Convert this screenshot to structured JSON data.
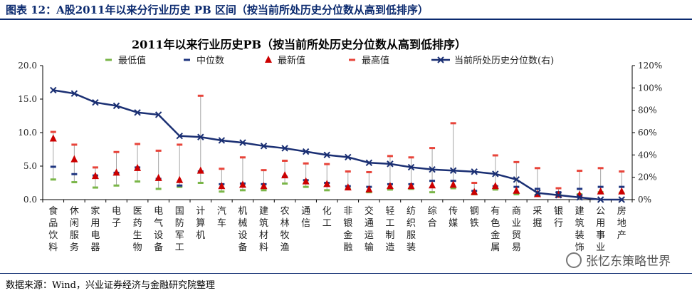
{
  "figure_title": "图表 12：A股2011年以来分行业历史 PB 区间（按当前所处历史分位数从高到低排序）",
  "source_note": "数据来源：Wind，兴业证券经济与金融研究院整理",
  "watermark": "张忆东策略世界",
  "colors": {
    "title": "#0b2a6f",
    "min": "#7ab648",
    "median": "#1f3680",
    "latest": "#cc0000",
    "max": "#e8443a",
    "line": "#1a2f73",
    "range": "#a6a6a6"
  },
  "chart_data": {
    "type": "line",
    "title": "2011年以来行业历史PB（按当前所处历史分位数从高到低排序）",
    "categories": [
      "食品饮料",
      "休闲服务",
      "家用电器",
      "电子",
      "医药生物",
      "电气设备",
      "国防军工",
      "计算机",
      "汽车",
      "机械设备",
      "建筑材料",
      "农林牧渔",
      "通信",
      "化工",
      "非银金融",
      "交通运输",
      "轻工制造",
      "纺织服装",
      "综合",
      "传媒",
      "钢铁",
      "有色金属",
      "商业贸易",
      "采掘",
      "银行",
      "建筑装饰",
      "公用事业",
      "房地产"
    ],
    "left_axis": {
      "ylim": [
        0,
        20
      ],
      "ticks": [
        "0.0",
        "5.0",
        "10.0",
        "15.0",
        "20.0"
      ]
    },
    "right_axis": {
      "ylim": [
        0,
        120
      ],
      "ticks": [
        "0%",
        "20%",
        "40%",
        "60%",
        "80%",
        "100%",
        "120%"
      ]
    },
    "legend": [
      "最低值",
      "中位数",
      "最新值",
      "最高值",
      "当前所处历史分位数(右)"
    ],
    "legend_position": "top",
    "grid": false,
    "series": [
      {
        "name": "最低值",
        "axis": "left",
        "values": [
          3.0,
          2.6,
          1.8,
          2.1,
          2.7,
          1.6,
          1.9,
          2.5,
          1.2,
          1.4,
          1.4,
          2.4,
          1.9,
          1.4,
          1.6,
          1.1,
          1.5,
          1.6,
          1.1,
          1.7,
          0.8,
          1.5,
          0.8,
          0.7,
          0.7,
          0.8,
          1.1,
          1.0
        ]
      },
      {
        "name": "中位数",
        "axis": "left",
        "values": [
          4.9,
          3.8,
          3.6,
          4.0,
          4.8,
          3.1,
          2.1,
          4.2,
          2.3,
          2.4,
          2.3,
          3.4,
          2.9,
          2.5,
          2.0,
          1.9,
          2.3,
          2.3,
          2.8,
          2.8,
          1.3,
          2.0,
          1.9,
          1.6,
          1.1,
          1.6,
          1.9,
          1.9
        ]
      },
      {
        "name": "最新值",
        "axis": "left",
        "values": [
          9.1,
          6.0,
          3.5,
          4.0,
          4.7,
          3.2,
          2.9,
          4.3,
          2.0,
          2.2,
          2.0,
          3.6,
          2.7,
          2.3,
          1.8,
          1.5,
          2.0,
          2.0,
          2.1,
          2.2,
          1.1,
          2.0,
          1.3,
          0.8,
          0.7,
          0.7,
          1.2,
          1.2
        ]
      },
      {
        "name": "最高值",
        "axis": "left",
        "values": [
          10.1,
          8.2,
          4.8,
          7.1,
          8.3,
          7.3,
          8.2,
          15.5,
          4.6,
          6.3,
          4.4,
          5.8,
          5.4,
          5.3,
          4.2,
          4.1,
          6.5,
          6.3,
          7.7,
          11.4,
          2.5,
          6.6,
          5.6,
          4.7,
          1.7,
          4.3,
          4.7,
          4.2
        ]
      },
      {
        "name": "当前所处历史分位数(右)",
        "axis": "right",
        "values": [
          98,
          95,
          87,
          84,
          78,
          76,
          57,
          56,
          53,
          51,
          48,
          46,
          43,
          40,
          38,
          33,
          32,
          29,
          27,
          26,
          25,
          23,
          18,
          6,
          4,
          2,
          0,
          0
        ]
      }
    ]
  }
}
